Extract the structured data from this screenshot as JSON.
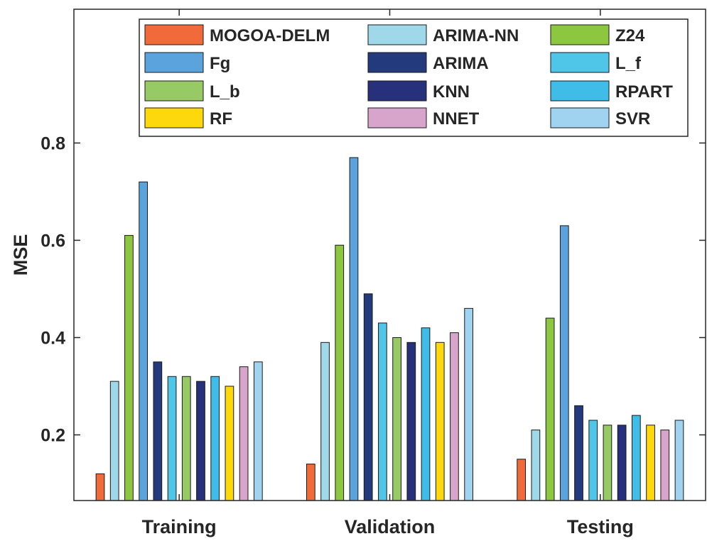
{
  "chart_data": {
    "type": "bar",
    "title": "",
    "xlabel": "",
    "ylabel": "MSE",
    "ylim": [
      0.065,
      1.075
    ],
    "yticks": [
      0.2,
      0.4,
      0.6,
      0.8
    ],
    "ytick_labels": [
      "0.2",
      "0.4",
      "0.6",
      "0.8"
    ],
    "categories": [
      "Training",
      "Validation",
      "Testing"
    ],
    "legend_position": "top-right",
    "grid": false,
    "series": [
      {
        "name": "MOGOA-DELM",
        "color": "#f06a3a",
        "values": [
          0.12,
          0.14,
          0.15
        ]
      },
      {
        "name": "ARIMA-NN",
        "color": "#9fd8e8",
        "values": [
          0.31,
          0.39,
          0.21
        ]
      },
      {
        "name": "Z24",
        "color": "#8dc63f",
        "values": [
          0.61,
          0.59,
          0.44
        ]
      },
      {
        "name": "Fg",
        "color": "#5ba3dc",
        "values": [
          0.72,
          0.77,
          0.63
        ]
      },
      {
        "name": "ARIMA",
        "color": "#233a7c",
        "values": [
          0.35,
          0.49,
          0.26
        ]
      },
      {
        "name": "L_f",
        "color": "#4fc5e8",
        "values": [
          0.32,
          0.43,
          0.23
        ]
      },
      {
        "name": "L_b",
        "color": "#97c965",
        "values": [
          0.32,
          0.4,
          0.22
        ]
      },
      {
        "name": "KNN",
        "color": "#27307a",
        "values": [
          0.31,
          0.39,
          0.22
        ]
      },
      {
        "name": "RPART",
        "color": "#3fbde8",
        "values": [
          0.32,
          0.42,
          0.24
        ]
      },
      {
        "name": "RF",
        "color": "#fdd80d",
        "values": [
          0.3,
          0.39,
          0.22
        ]
      },
      {
        "name": "NNET",
        "color": "#d7a4cc",
        "values": [
          0.34,
          0.41,
          0.21
        ]
      },
      {
        "name": "SVR",
        "color": "#9fd3f0",
        "values": [
          0.35,
          0.46,
          0.23
        ]
      }
    ]
  }
}
